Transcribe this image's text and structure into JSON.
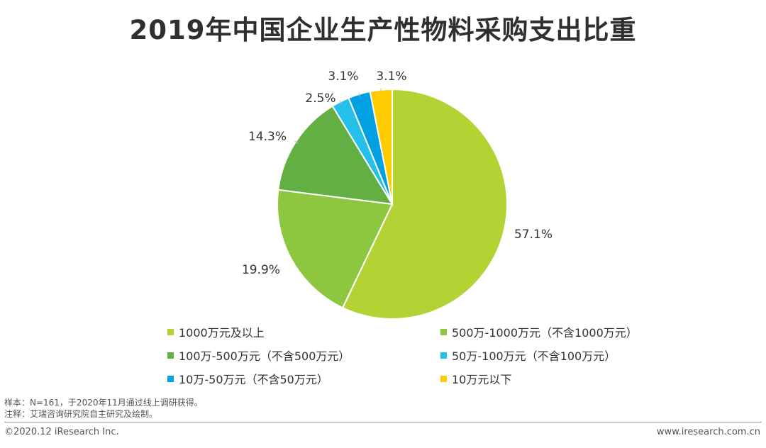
{
  "colors": {
    "lime": "#b3d234",
    "green_mid": "#8dc63f",
    "green_dark": "#62b043",
    "cyan": "#25c0e8",
    "blue": "#00a0e1",
    "yellow": "#ffcc00"
  },
  "chart_data": {
    "type": "pie",
    "title": "2019年中国企业生产性物料采购支出比重",
    "slices": [
      {
        "label": "1000万元及以上",
        "value": 57.1,
        "display": "57.1%",
        "color": "#b3d234"
      },
      {
        "label": "500万-1000万元（不含1000万元）",
        "value": 19.9,
        "display": "19.9%",
        "color": "#8dc63f"
      },
      {
        "label": "100万-500万元（不含500万元）",
        "value": 14.3,
        "display": "14.3%",
        "color": "#62b043"
      },
      {
        "label": "50万-100万元（不含100万元）",
        "value": 2.5,
        "display": "2.5%",
        "color": "#25c0e8"
      },
      {
        "label": "10万-50万元（不含50万元）",
        "value": 3.1,
        "display": "3.1%",
        "color": "#00a0e1"
      },
      {
        "label": "10万元以下",
        "value": 3.1,
        "display": "3.1%",
        "color": "#ffcc00"
      }
    ],
    "legend_position": "bottom"
  },
  "notes": {
    "sample": "样本：N=161，于2020年11月通过线上调研获得。",
    "source": "注释：艾瑞咨询研究院自主研究及绘制。"
  },
  "footer": {
    "copyright": "©2020.12 iResearch Inc.",
    "website": "www.iresearch.com.cn"
  }
}
